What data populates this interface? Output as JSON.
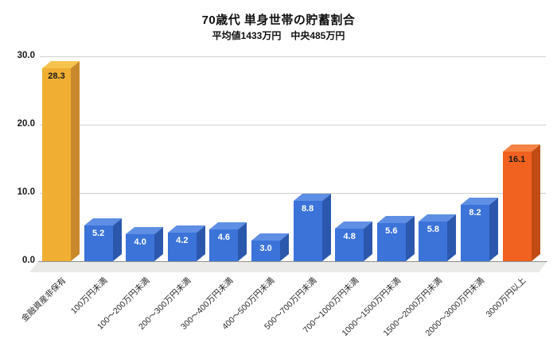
{
  "header": {
    "title": "70歳代 単身世帯の貯蓄割合",
    "subtitle": "平均値1433万円　中央485万円"
  },
  "chart_data": {
    "type": "bar",
    "style": "3d-column",
    "title": "70歳代 単身世帯の貯蓄割合",
    "subtitle": "平均値1433万円　中央485万円",
    "categories": [
      "金融資産非保有",
      "100万円未満",
      "100〜200万円未満",
      "200〜300万円未満",
      "300〜400万円未満",
      "400〜500万円未満",
      "500〜700万円未満",
      "700〜1000万円未満",
      "1000〜1500万円未満",
      "1500〜2000万円未満",
      "2000〜3000万円未満",
      "3000万円以上"
    ],
    "values": [
      28.3,
      5.2,
      4.0,
      4.2,
      4.6,
      3.0,
      8.8,
      4.8,
      5.6,
      5.8,
      8.2,
      16.1
    ],
    "bar_styles": [
      "gold",
      "blue",
      "blue",
      "blue",
      "blue",
      "blue",
      "blue",
      "blue",
      "blue",
      "blue",
      "blue",
      "orange"
    ],
    "palette": {
      "gold": {
        "front": "#F0AF33",
        "top": "#F5C34E",
        "side": "#C9882B",
        "label": "#1b1b1b"
      },
      "blue": {
        "front": "#3B73D9",
        "top": "#5E8FE4",
        "side": "#2B58AD",
        "label": "#ffffff"
      },
      "orange": {
        "front": "#F1611F",
        "top": "#F58345",
        "side": "#C24B13",
        "label": "#1b1b1b"
      }
    },
    "y_axis": {
      "min": 0,
      "max": 30,
      "ticks": [
        30,
        20,
        10,
        0
      ],
      "tick_labels": [
        "30.0",
        "20.0",
        "10.0",
        "0.0"
      ]
    },
    "grid": true,
    "legend": false
  }
}
